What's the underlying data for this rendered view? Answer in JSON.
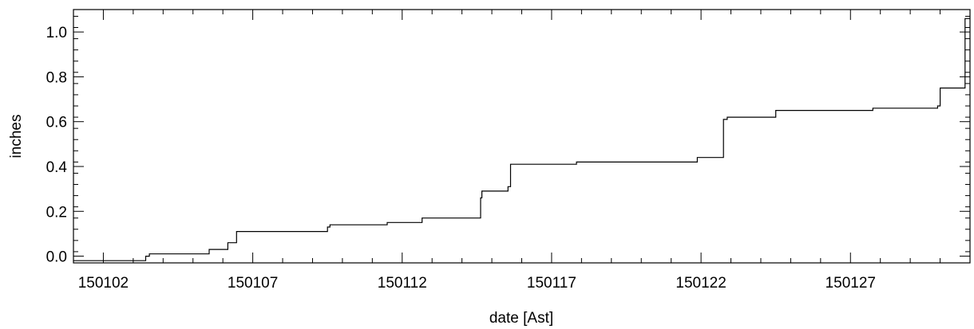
{
  "chart_data": {
    "type": "line",
    "title": "",
    "xlabel": "date [Ast]",
    "ylabel": "inches",
    "line_style": "step",
    "line_color": "#000000",
    "grid": false,
    "xlim": [
      "2015-01-01",
      "2015-01-31"
    ],
    "ylim": [
      -0.03,
      1.1
    ],
    "x_ticks": [
      "2015-01-02",
      "2015-01-07",
      "2015-01-12",
      "2015-01-17",
      "2015-01-22",
      "2015-01-27"
    ],
    "x_tick_labels": [
      "150102",
      "150107",
      "150112",
      "150117",
      "150122",
      "150127"
    ],
    "y_ticks": [
      0.0,
      0.2,
      0.4,
      0.6,
      0.8,
      1.0
    ],
    "y_tick_labels": [
      "0.0",
      "0.2",
      "0.4",
      "0.6",
      "0.8",
      "1.0"
    ],
    "series": [
      {
        "x": [
          "2015-01-01 00:00",
          "2015-01-03 10:00",
          "2015-01-03 13:00",
          "2015-01-05 13:00",
          "2015-01-06 04:00",
          "2015-01-06 11:00",
          "2015-01-09 12:00",
          "2015-01-09 14:00",
          "2015-01-11 12:00",
          "2015-01-12 16:00",
          "2015-01-14 15:00",
          "2015-01-14 16:00",
          "2015-01-15 13:00",
          "2015-01-15 15:00",
          "2015-01-17 20:00",
          "2015-01-21 21:00",
          "2015-01-22 18:00",
          "2015-01-22 21:00",
          "2015-01-24 12:00",
          "2015-01-27 18:00",
          "2015-01-29 22:00",
          "2015-01-30 00:00",
          "2015-01-30 20:00",
          "2015-01-31 00:00"
        ],
        "y": [
          -0.02,
          0.0,
          0.01,
          0.03,
          0.06,
          0.11,
          0.13,
          0.14,
          0.15,
          0.17,
          0.26,
          0.29,
          0.31,
          0.41,
          0.42,
          0.44,
          0.61,
          0.62,
          0.65,
          0.66,
          0.67,
          0.75,
          1.06,
          1.06
        ]
      }
    ]
  }
}
